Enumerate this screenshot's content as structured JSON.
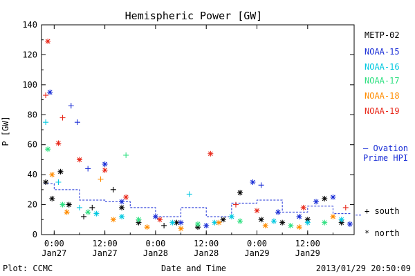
{
  "chart_data": {
    "type": "scatter",
    "title": "Hemispheric Power [GW]",
    "xlabel": "Date and Time",
    "ylabel": "P [GW]",
    "ylim": [
      0,
      140
    ],
    "xlim": [
      "2013-01-26 21:00",
      "2013-01-29 23:00"
    ],
    "yticks": [
      0,
      20,
      40,
      60,
      80,
      100,
      120,
      140
    ],
    "xticks": [
      {
        "t": "2013-01-27 00:00",
        "line1": "0:00",
        "line2": "Jan27"
      },
      {
        "t": "2013-01-27 12:00",
        "line1": "12:00",
        "line2": "Jan27"
      },
      {
        "t": "2013-01-28 00:00",
        "line1": "0:00",
        "line2": "Jan28"
      },
      {
        "t": "2013-01-28 12:00",
        "line1": "12:00",
        "line2": "Jan28"
      },
      {
        "t": "2013-01-29 00:00",
        "line1": "0:00",
        "line2": "Jan29"
      },
      {
        "t": "2013-01-29 12:00",
        "line1": "12:00",
        "line2": "Jan29"
      }
    ],
    "grid": false,
    "legend_position": "right",
    "series": [
      {
        "name": "METP-02",
        "color": "#000000",
        "points": [
          {
            "t": "2013-01-26 22:00",
            "y": 35,
            "m": "*"
          },
          {
            "t": "2013-01-26 23:30",
            "y": 24,
            "m": "*"
          },
          {
            "t": "2013-01-27 01:30",
            "y": 42,
            "m": "*"
          },
          {
            "t": "2013-01-27 03:30",
            "y": 20,
            "m": "*"
          },
          {
            "t": "2013-01-27 07:00",
            "y": 12,
            "m": "+"
          },
          {
            "t": "2013-01-27 09:00",
            "y": 18,
            "m": "+"
          },
          {
            "t": "2013-01-27 14:00",
            "y": 30,
            "m": "+"
          },
          {
            "t": "2013-01-27 16:00",
            "y": 18,
            "m": "*"
          },
          {
            "t": "2013-01-27 20:00",
            "y": 8,
            "m": "*"
          },
          {
            "t": "2013-01-28 02:00",
            "y": 6,
            "m": "+"
          },
          {
            "t": "2013-01-28 05:00",
            "y": 8,
            "m": "*"
          },
          {
            "t": "2013-01-28 10:00",
            "y": 5,
            "m": "*"
          },
          {
            "t": "2013-01-28 16:00",
            "y": 10,
            "m": "*"
          },
          {
            "t": "2013-01-28 20:00",
            "y": 28,
            "m": "*"
          },
          {
            "t": "2013-01-29 01:00",
            "y": 10,
            "m": "*"
          },
          {
            "t": "2013-01-29 06:00",
            "y": 8,
            "m": "*"
          },
          {
            "t": "2013-01-29 12:00",
            "y": 10,
            "m": "*"
          },
          {
            "t": "2013-01-29 16:00",
            "y": 24,
            "m": "*"
          },
          {
            "t": "2013-01-29 20:00",
            "y": 8,
            "m": "*"
          }
        ]
      },
      {
        "name": "NOAA-15",
        "color": "#1b2fd6",
        "points": [
          {
            "t": "2013-01-26 23:00",
            "y": 95,
            "m": "*"
          },
          {
            "t": "2013-01-27 04:00",
            "y": 86,
            "m": "+"
          },
          {
            "t": "2013-01-27 05:30",
            "y": 75,
            "m": "+"
          },
          {
            "t": "2013-01-27 08:00",
            "y": 44,
            "m": "+"
          },
          {
            "t": "2013-01-27 12:00",
            "y": 47,
            "m": "*"
          },
          {
            "t": "2013-01-27 16:00",
            "y": 22,
            "m": "*"
          },
          {
            "t": "2013-01-28 00:00",
            "y": 12,
            "m": "*"
          },
          {
            "t": "2013-01-28 06:00",
            "y": 8,
            "m": "*"
          },
          {
            "t": "2013-01-28 12:00",
            "y": 6,
            "m": "*"
          },
          {
            "t": "2013-01-28 23:00",
            "y": 35,
            "m": "*"
          },
          {
            "t": "2013-01-29 01:00",
            "y": 33,
            "m": "+"
          },
          {
            "t": "2013-01-29 05:00",
            "y": 15,
            "m": "*"
          },
          {
            "t": "2013-01-29 10:00",
            "y": 12,
            "m": "*"
          },
          {
            "t": "2013-01-29 14:00",
            "y": 22,
            "m": "*"
          },
          {
            "t": "2013-01-29 18:00",
            "y": 25,
            "m": "*"
          },
          {
            "t": "2013-01-29 22:00",
            "y": 7,
            "m": "*"
          }
        ]
      },
      {
        "name": "NOAA-16",
        "color": "#00c8e0",
        "points": [
          {
            "t": "2013-01-26 22:00",
            "y": 75,
            "m": "+"
          },
          {
            "t": "2013-01-27 01:00",
            "y": 35,
            "m": "+"
          },
          {
            "t": "2013-01-27 06:00",
            "y": 18,
            "m": "+"
          },
          {
            "t": "2013-01-27 10:00",
            "y": 14,
            "m": "*"
          },
          {
            "t": "2013-01-27 16:00",
            "y": 12,
            "m": "*"
          },
          {
            "t": "2013-01-28 04:00",
            "y": 8,
            "m": "*"
          },
          {
            "t": "2013-01-28 08:00",
            "y": 27,
            "m": "+"
          },
          {
            "t": "2013-01-28 14:00",
            "y": 8,
            "m": "*"
          },
          {
            "t": "2013-01-28 18:00",
            "y": 12,
            "m": "*"
          },
          {
            "t": "2013-01-29 04:00",
            "y": 9,
            "m": "*"
          },
          {
            "t": "2013-01-29 12:00",
            "y": 8,
            "m": "*"
          },
          {
            "t": "2013-01-29 20:00",
            "y": 10,
            "m": "*"
          }
        ]
      },
      {
        "name": "NOAA-17",
        "color": "#2ee080",
        "points": [
          {
            "t": "2013-01-26 22:30",
            "y": 57,
            "m": "*"
          },
          {
            "t": "2013-01-27 02:00",
            "y": 20,
            "m": "*"
          },
          {
            "t": "2013-01-27 08:00",
            "y": 15,
            "m": "*"
          },
          {
            "t": "2013-01-27 17:00",
            "y": 53,
            "m": "+"
          },
          {
            "t": "2013-01-27 20:00",
            "y": 10,
            "m": "*"
          },
          {
            "t": "2013-01-28 10:00",
            "y": 7,
            "m": "*"
          },
          {
            "t": "2013-01-28 20:00",
            "y": 9,
            "m": "*"
          },
          {
            "t": "2013-01-29 08:00",
            "y": 6,
            "m": "*"
          },
          {
            "t": "2013-01-29 16:00",
            "y": 8,
            "m": "*"
          }
        ]
      },
      {
        "name": "NOAA-18",
        "color": "#ff8c00",
        "points": [
          {
            "t": "2013-01-26 23:30",
            "y": 40,
            "m": "*"
          },
          {
            "t": "2013-01-27 03:00",
            "y": 15,
            "m": "*"
          },
          {
            "t": "2013-01-27 11:00",
            "y": 37,
            "m": "+"
          },
          {
            "t": "2013-01-27 14:00",
            "y": 10,
            "m": "*"
          },
          {
            "t": "2013-01-27 22:00",
            "y": 5,
            "m": "*"
          },
          {
            "t": "2013-01-28 06:00",
            "y": 4,
            "m": "*"
          },
          {
            "t": "2013-01-28 15:00",
            "y": 8,
            "m": "*"
          },
          {
            "t": "2013-01-29 02:00",
            "y": 6,
            "m": "*"
          },
          {
            "t": "2013-01-29 10:00",
            "y": 5,
            "m": "*"
          },
          {
            "t": "2013-01-29 18:00",
            "y": 12,
            "m": "*"
          }
        ]
      },
      {
        "name": "NOAA-19",
        "color": "#e8281a",
        "points": [
          {
            "t": "2013-01-26 22:00",
            "y": 93,
            "m": "+"
          },
          {
            "t": "2013-01-26 22:30",
            "y": 129,
            "m": "*"
          },
          {
            "t": "2013-01-27 01:00",
            "y": 61,
            "m": "*"
          },
          {
            "t": "2013-01-27 02:00",
            "y": 78,
            "m": "+"
          },
          {
            "t": "2013-01-27 06:00",
            "y": 50,
            "m": "*"
          },
          {
            "t": "2013-01-27 12:00",
            "y": 43,
            "m": "*"
          },
          {
            "t": "2013-01-27 17:00",
            "y": 25,
            "m": "*"
          },
          {
            "t": "2013-01-28 01:00",
            "y": 10,
            "m": "*"
          },
          {
            "t": "2013-01-28 13:00",
            "y": 54,
            "m": "*"
          },
          {
            "t": "2013-01-28 19:00",
            "y": 20,
            "m": "+"
          },
          {
            "t": "2013-01-29 00:00",
            "y": 16,
            "m": "*"
          },
          {
            "t": "2013-01-29 11:00",
            "y": 18,
            "m": "*"
          },
          {
            "t": "2013-01-29 21:00",
            "y": 18,
            "m": "+"
          }
        ]
      },
      {
        "name": "Ovation Prime HPI",
        "color": "#1b2fd6",
        "style": "dashed",
        "points": [
          {
            "t": "2013-01-26 21:30",
            "y": 34
          },
          {
            "t": "2013-01-27 00:00",
            "y": 30
          },
          {
            "t": "2013-01-27 06:00",
            "y": 23
          },
          {
            "t": "2013-01-27 12:00",
            "y": 22
          },
          {
            "t": "2013-01-27 18:00",
            "y": 18
          },
          {
            "t": "2013-01-28 00:00",
            "y": 12
          },
          {
            "t": "2013-01-28 06:00",
            "y": 18
          },
          {
            "t": "2013-01-28 12:00",
            "y": 12
          },
          {
            "t": "2013-01-28 18:00",
            "y": 21
          },
          {
            "t": "2013-01-29 00:00",
            "y": 23
          },
          {
            "t": "2013-01-29 06:00",
            "y": 15
          },
          {
            "t": "2013-01-29 12:00",
            "y": 19
          },
          {
            "t": "2013-01-29 18:00",
            "y": 14
          },
          {
            "t": "2013-01-29 22:00",
            "y": 13
          }
        ]
      }
    ]
  },
  "legend": {
    "items": [
      {
        "label": "METP-02",
        "color": "#000000"
      },
      {
        "label": "NOAA-15",
        "color": "#1b2fd6"
      },
      {
        "label": "NOAA-16",
        "color": "#00c8e0"
      },
      {
        "label": "NOAA-17",
        "color": "#2ee080"
      },
      {
        "label": "NOAA-18",
        "color": "#ff8c00"
      },
      {
        "label": "NOAA-19",
        "color": "#e8281a"
      }
    ],
    "ovation_line1": "— Ovation",
    "ovation_line2": "Prime HPI",
    "ovation_color": "#1b2fd6",
    "south": "+ south",
    "north": "* north"
  },
  "footer": {
    "left": "Plot: CCMC",
    "right": "2013/01/29 20:50:09"
  }
}
